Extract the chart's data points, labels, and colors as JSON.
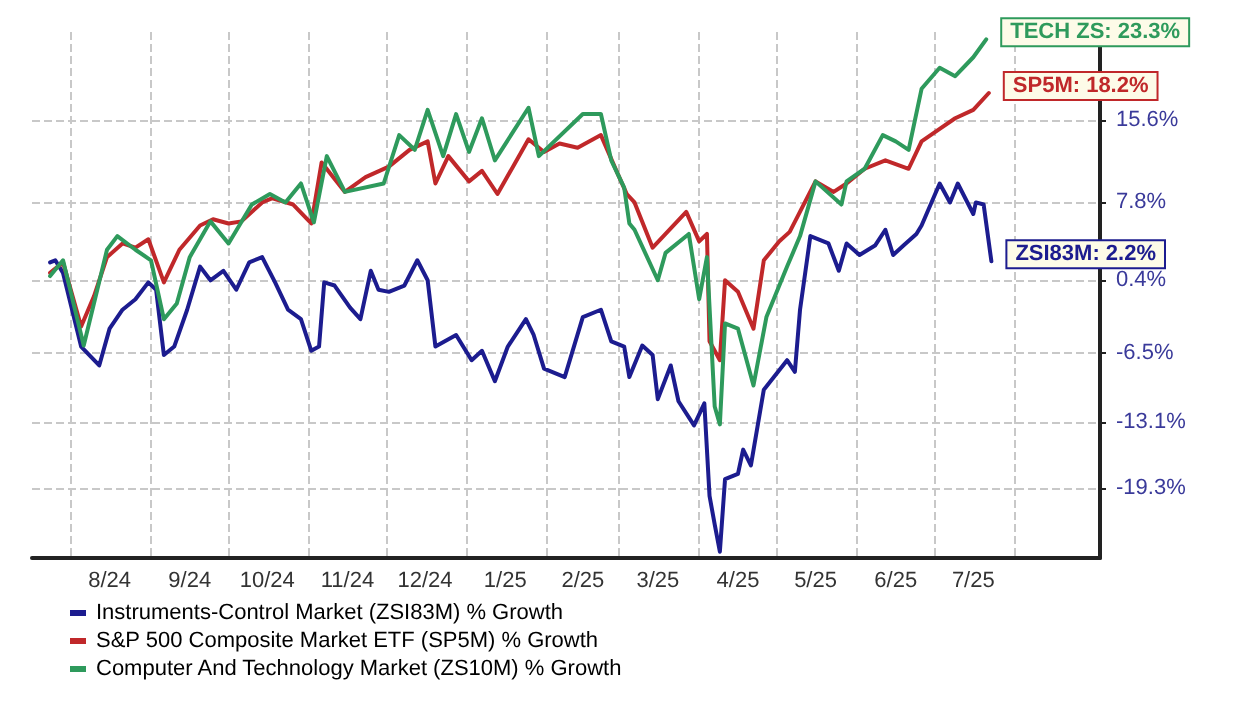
{
  "chart_data": {
    "type": "line",
    "xlim": [
      "2024-07-17",
      "2025-09-03"
    ],
    "ylim": [
      -26,
      24
    ],
    "xticks": [
      {
        "value": "2024-08-01",
        "label": null
      },
      {
        "value": "2024-08-16",
        "label": "8/24"
      },
      {
        "value": "2024-09-01",
        "label": null
      },
      {
        "value": "2024-09-16",
        "label": "9/24"
      },
      {
        "value": "2024-10-01",
        "label": null
      },
      {
        "value": "2024-10-16",
        "label": "10/24"
      },
      {
        "value": "2024-11-01",
        "label": null
      },
      {
        "value": "2024-11-16",
        "label": "11/24"
      },
      {
        "value": "2024-12-01",
        "label": null
      },
      {
        "value": "2024-12-16",
        "label": "12/24"
      },
      {
        "value": "2025-01-01",
        "label": null
      },
      {
        "value": "2025-01-16",
        "label": "1/25"
      },
      {
        "value": "2025-02-01",
        "label": null
      },
      {
        "value": "2025-02-15",
        "label": "2/25"
      },
      {
        "value": "2025-03-01",
        "label": null
      },
      {
        "value": "2025-03-16",
        "label": "3/25"
      },
      {
        "value": "2025-04-01",
        "label": null
      },
      {
        "value": "2025-04-16",
        "label": "4/25"
      },
      {
        "value": "2025-05-01",
        "label": null
      },
      {
        "value": "2025-05-16",
        "label": "5/25"
      },
      {
        "value": "2025-06-01",
        "label": null
      },
      {
        "value": "2025-06-16",
        "label": "6/25"
      },
      {
        "value": "2025-07-01",
        "label": null
      },
      {
        "value": "2025-07-16",
        "label": "7/25"
      },
      {
        "value": "2025-08-01",
        "label": null
      }
    ],
    "yticks": [
      {
        "value": -19.3,
        "label": "-19.3%"
      },
      {
        "value": -13.1,
        "label": "-13.1%"
      },
      {
        "value": -6.5,
        "label": "-6.5%"
      },
      {
        "value": 0.4,
        "label": "0.4%"
      },
      {
        "value": 7.8,
        "label": "7.8%"
      },
      {
        "value": 15.6,
        "label": "15.6%"
      }
    ],
    "grid": true,
    "legend": "bottom left",
    "marker": "none",
    "line_style": "solid",
    "annotations": [
      {
        "text": "TECH ZS: 23.3%",
        "x": "2025-07-21",
        "y": 23.3
      },
      {
        "text": "SP5M: 18.2%",
        "x": "2025-07-22",
        "y": 18.2
      },
      {
        "text": "ZSI83M: 2.2%",
        "x": "2025-07-23",
        "y": 2.2
      }
    ],
    "series": [
      {
        "name": "Instruments-Control Market (ZSI83M) % Growth",
        "color": "#1c1c8f",
        "x": [
          "2024-07-24",
          "2024-07-26",
          "2024-07-29",
          "2024-08-05",
          "2024-08-12",
          "2024-08-16",
          "2024-08-21",
          "2024-08-26",
          "2024-08-31",
          "2024-09-03",
          "2024-09-06",
          "2024-09-10",
          "2024-09-15",
          "2024-09-20",
          "2024-09-24",
          "2024-09-29",
          "2024-10-04",
          "2024-10-09",
          "2024-10-14",
          "2024-10-19",
          "2024-10-24",
          "2024-10-29",
          "2024-11-02",
          "2024-11-05",
          "2024-11-07",
          "2024-11-11",
          "2024-11-17",
          "2024-11-21",
          "2024-11-25",
          "2024-11-28",
          "2024-12-02",
          "2024-12-08",
          "2024-12-13",
          "2024-12-17",
          "2024-12-20",
          "2024-12-28",
          "2025-01-03",
          "2025-01-07",
          "2025-01-12",
          "2025-01-17",
          "2025-01-24",
          "2025-01-27",
          "2025-01-31",
          "2025-02-08",
          "2025-02-15",
          "2025-02-22",
          "2025-02-26",
          "2025-03-03",
          "2025-03-05",
          "2025-03-10",
          "2025-03-14",
          "2025-03-16",
          "2025-03-21",
          "2025-03-24",
          "2025-03-30",
          "2025-04-03",
          "2025-04-05",
          "2025-04-07",
          "2025-04-09",
          "2025-04-11",
          "2025-04-16",
          "2025-04-18",
          "2025-04-21",
          "2025-04-26",
          "2025-05-05",
          "2025-05-08",
          "2025-05-10",
          "2025-05-14",
          "2025-05-21",
          "2025-05-25",
          "2025-05-28",
          "2025-06-02",
          "2025-06-08",
          "2025-06-12",
          "2025-06-15",
          "2025-06-19",
          "2025-06-24",
          "2025-06-26",
          "2025-07-03",
          "2025-07-07",
          "2025-07-10",
          "2025-07-16",
          "2025-07-17",
          "2025-07-20",
          "2025-07-23"
        ],
        "values": [
          2.1,
          2.3,
          1.1,
          -5.9,
          -7.7,
          -4.2,
          -2.4,
          -1.4,
          0.2,
          -0.5,
          -6.7,
          -5.9,
          -2.4,
          1.7,
          0.4,
          1.3,
          -0.5,
          2.1,
          2.6,
          0.2,
          -2.4,
          -3.3,
          -6.3,
          -5.9,
          0.2,
          -0.1,
          -2.2,
          -3.3,
          1.3,
          -0.5,
          -0.7,
          -0.1,
          2.3,
          0.4,
          -5.9,
          -4.8,
          -7.2,
          -6.3,
          -9.2,
          -5.9,
          -3.3,
          -4.8,
          -8.0,
          -8.8,
          -3.1,
          -2.4,
          -5.4,
          -5.9,
          -8.8,
          -5.8,
          -6.7,
          -10.9,
          -7.7,
          -11.1,
          -13.4,
          -11.3,
          -20.1,
          -22.8,
          -25.4,
          -18.5,
          -18.0,
          -15.7,
          -17.2,
          -10.0,
          -7.2,
          -8.3,
          -2.4,
          4.6,
          3.9,
          1.3,
          3.9,
          2.8,
          3.7,
          5.2,
          2.8,
          3.7,
          4.8,
          5.6,
          9.6,
          7.8,
          9.6,
          6.7,
          7.8,
          7.6,
          2.2
        ]
      },
      {
        "name": "S&P 500 Composite Market ETF (SP5M) % Growth",
        "color": "#c0282a",
        "x": [
          "2024-07-24",
          "2024-07-29",
          "2024-08-05",
          "2024-08-10",
          "2024-08-15",
          "2024-08-21",
          "2024-08-26",
          "2024-08-31",
          "2024-09-06",
          "2024-09-12",
          "2024-09-20",
          "2024-09-25",
          "2024-10-01",
          "2024-10-06",
          "2024-10-14",
          "2024-10-18",
          "2024-10-26",
          "2024-11-02",
          "2024-11-06",
          "2024-11-15",
          "2024-11-23",
          "2024-12-02",
          "2024-12-10",
          "2024-12-17",
          "2024-12-20",
          "2024-12-25",
          "2025-01-02",
          "2025-01-07",
          "2025-01-13",
          "2025-01-19",
          "2025-01-25",
          "2025-01-31",
          "2025-02-06",
          "2025-02-13",
          "2025-02-22",
          "2025-02-28",
          "2025-03-04",
          "2025-03-07",
          "2025-03-14",
          "2025-03-19",
          "2025-03-27",
          "2025-04-01",
          "2025-04-04",
          "2025-04-05",
          "2025-04-09",
          "2025-04-11",
          "2025-04-16",
          "2025-04-22",
          "2025-04-26",
          "2025-05-02",
          "2025-05-06",
          "2025-05-16",
          "2025-05-23",
          "2025-05-28",
          "2025-06-04",
          "2025-06-12",
          "2025-06-21",
          "2025-06-26",
          "2025-07-03",
          "2025-07-09",
          "2025-07-16",
          "2025-07-22"
        ],
        "values": [
          1.1,
          2.1,
          -4.0,
          -1.1,
          2.6,
          3.9,
          3.5,
          4.3,
          0.2,
          3.3,
          5.6,
          6.2,
          5.8,
          6.0,
          7.8,
          8.2,
          7.6,
          5.8,
          11.6,
          8.8,
          10.2,
          11.2,
          12.8,
          13.6,
          9.6,
          12.2,
          9.8,
          10.8,
          8.6,
          11.2,
          13.8,
          12.6,
          13.4,
          13.0,
          14.2,
          10.8,
          8.6,
          7.8,
          3.5,
          4.8,
          6.9,
          4.1,
          4.8,
          -5.4,
          -7.2,
          0.4,
          -0.7,
          -4.2,
          2.3,
          4.1,
          5.0,
          9.8,
          8.8,
          9.6,
          11.0,
          11.8,
          11.0,
          13.6,
          14.8,
          15.8,
          16.6,
          18.2
        ]
      },
      {
        "name": "Computer And Technology Market (ZS10M) % Growth",
        "color": "#2e9a5c",
        "x": [
          "2024-07-24",
          "2024-07-29",
          "2024-08-06",
          "2024-08-15",
          "2024-08-19",
          "2024-08-26",
          "2024-09-01",
          "2024-09-06",
          "2024-09-11",
          "2024-09-16",
          "2024-09-20",
          "2024-09-24",
          "2024-10-01",
          "2024-10-10",
          "2024-10-17",
          "2024-10-23",
          "2024-10-29",
          "2024-11-03",
          "2024-11-08",
          "2024-11-15",
          "2024-11-30",
          "2024-12-06",
          "2024-12-12",
          "2024-12-17",
          "2024-12-23",
          "2024-12-28",
          "2025-01-02",
          "2025-01-07",
          "2025-01-12",
          "2025-01-25",
          "2025-01-29",
          "2025-02-15",
          "2025-02-22",
          "2025-02-26",
          "2025-03-03",
          "2025-03-05",
          "2025-03-07",
          "2025-03-16",
          "2025-03-19",
          "2025-03-28",
          "2025-04-01",
          "2025-04-04",
          "2025-04-07",
          "2025-04-09",
          "2025-04-11",
          "2025-04-16",
          "2025-04-22",
          "2025-04-27",
          "2025-05-05",
          "2025-05-10",
          "2025-05-16",
          "2025-05-26",
          "2025-05-28",
          "2025-06-04",
          "2025-06-11",
          "2025-06-16",
          "2025-06-21",
          "2025-06-26",
          "2025-07-03",
          "2025-07-09",
          "2025-07-16",
          "2025-07-21"
        ],
        "values": [
          0.8,
          2.3,
          -5.8,
          3.3,
          4.6,
          3.3,
          2.3,
          -3.3,
          -1.8,
          2.6,
          4.3,
          6.0,
          3.9,
          7.6,
          8.6,
          7.8,
          9.6,
          5.9,
          12.2,
          8.8,
          9.6,
          14.2,
          12.8,
          16.6,
          12.2,
          16.2,
          12.6,
          15.8,
          11.8,
          16.8,
          12.2,
          16.2,
          16.2,
          11.8,
          9.2,
          5.8,
          5.2,
          0.4,
          3.0,
          4.8,
          -1.4,
          2.6,
          -11.6,
          -13.3,
          -3.7,
          -4.2,
          -9.6,
          -3.1,
          1.7,
          4.6,
          9.8,
          7.6,
          9.8,
          11.0,
          14.2,
          13.6,
          12.8,
          18.6,
          20.6,
          19.8,
          21.6,
          23.3
        ]
      }
    ]
  }
}
